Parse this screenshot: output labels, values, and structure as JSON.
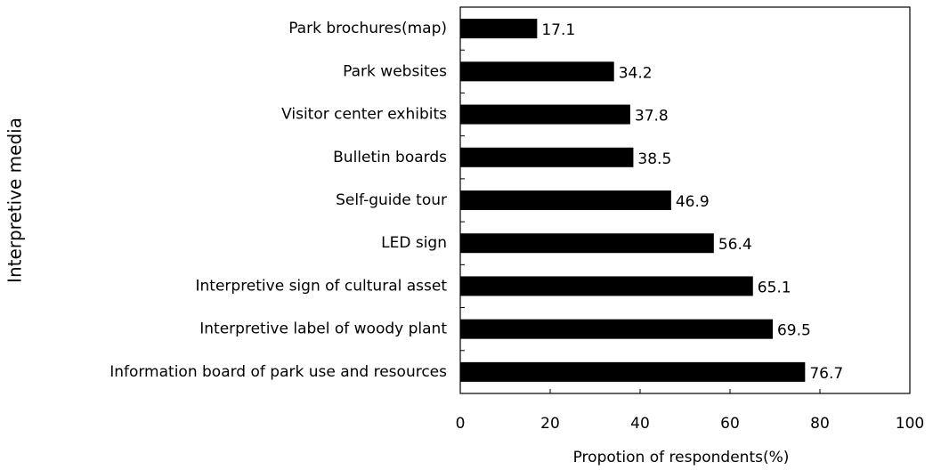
{
  "chart_data": {
    "type": "bar",
    "orientation": "horizontal",
    "categories": [
      "Park brochures(map)",
      "Park websites",
      "Visitor center exhibits",
      "Bulletin boards",
      "Self-guide tour",
      "LED sign",
      "Interpretive sign of cultural asset",
      "Interpretive label of woody plant",
      "Information board of park use and resources"
    ],
    "values": [
      17.1,
      34.2,
      37.8,
      38.5,
      46.9,
      56.4,
      65.1,
      69.5,
      76.7
    ],
    "color": "#000000",
    "xlim": [
      0,
      100
    ],
    "xticks": [
      0,
      20,
      40,
      60,
      80,
      100
    ],
    "x_label": "Propotion of respondents(%)",
    "y_label": "Interpretive media",
    "grid": false
  }
}
